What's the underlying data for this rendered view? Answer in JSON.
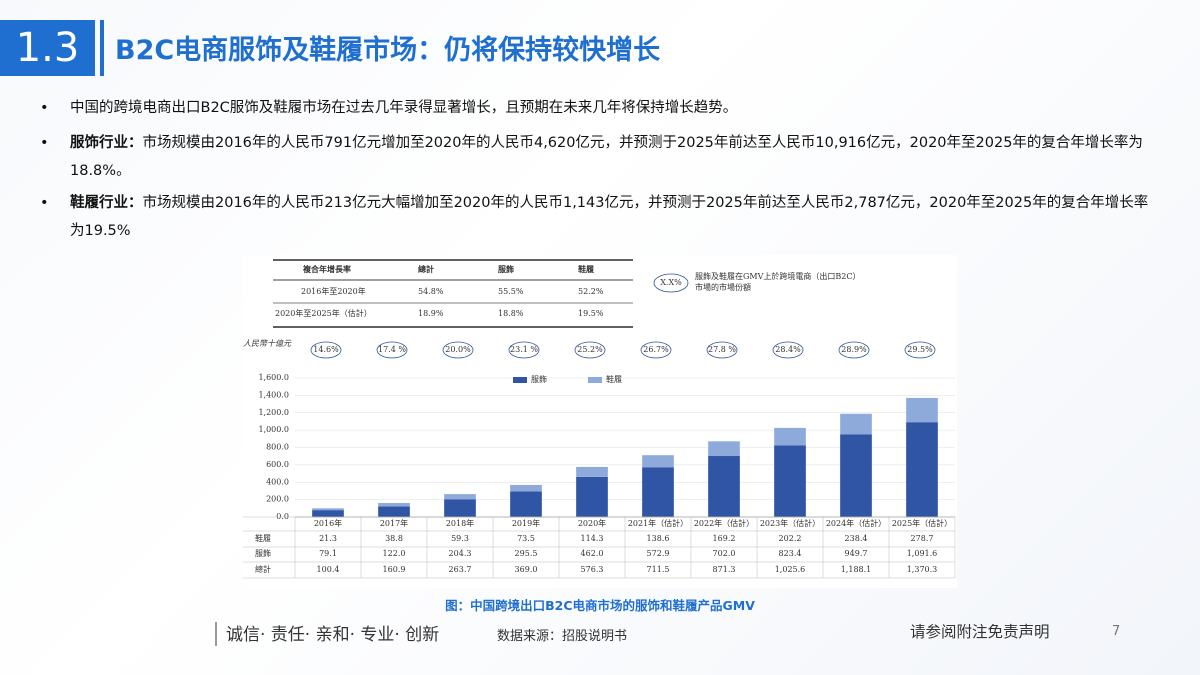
{
  "header": {
    "number": "1.3",
    "title": "B2C电商服饰及鞋履市场：仍将保持较快增长"
  },
  "bullets": [
    {
      "text": "中国的跨境电商出口B2C服饰及鞋履市场在过去几年录得显著增长，且预期在未来几年将保持增长趋势。"
    },
    {
      "label": "服饰行业：",
      "text": "市场规模由2016年的人民币791亿元增加至2020年的人民币4,620亿元，并预测于2025年前达至人民币10,916亿元，2020年至2025年的复合年增长率为18.8%。"
    },
    {
      "label": "鞋履行业：",
      "text": "市场规模由2016年的人民币213亿元大幅增加至2020年的人民币1,143亿元，并预测于2025年前达至人民币2,787亿元，2020年至2025年的复合年增长率为19.5%"
    }
  ],
  "growth_table": {
    "header": [
      "複合年增長率",
      "總計",
      "服飾",
      "鞋履"
    ],
    "rows": [
      [
        "2016年至2020年",
        "54.8%",
        "55.5%",
        "52.2%"
      ],
      [
        "2020年至2025年（估計）",
        "18.9%",
        "18.8%",
        "19.5%"
      ]
    ]
  },
  "share_note": {
    "symbol": "X.X%",
    "text": "服飾及鞋履在GMV上於跨境電商（出口B2C）市場的市場份額"
  },
  "chart_data": {
    "type": "stacked_bar",
    "y_label": "人民幣十億元",
    "categories": [
      "2016年",
      "2017年",
      "2018年",
      "2019年",
      "2020年",
      "2021年（估計）",
      "2022年（估計）",
      "2023年（估計）",
      "2024年（估計）",
      "2025年（估計）"
    ],
    "series": [
      {
        "name": "服飾",
        "color": "#2f55a4",
        "values": [
          79.1,
          122.0,
          204.3,
          295.5,
          462.0,
          572.9,
          702.0,
          823.4,
          949.7,
          1091.6
        ],
        "value_labels": [
          "79.1",
          "122.0",
          "204.3",
          "295.5",
          "462.0",
          "572.9",
          "702.0",
          "823.4",
          "949.7",
          "1,091.6"
        ]
      },
      {
        "name": "鞋履",
        "color": "#8eaadb",
        "values": [
          21.3,
          38.8,
          59.3,
          73.5,
          114.3,
          138.6,
          169.2,
          202.2,
          238.4,
          278.7
        ],
        "value_labels": [
          "21.3",
          "38.8",
          "59.3",
          "73.5",
          "114.3",
          "138.6",
          "169.2",
          "202.2",
          "238.4",
          "278.7"
        ]
      }
    ],
    "total_name": "總計",
    "totals": [
      100.4,
      160.9,
      263.7,
      369.0,
      576.3,
      711.5,
      871.3,
      1025.6,
      1188.1,
      1370.3
    ],
    "total_labels": [
      "100.4",
      "160.9",
      "263.7",
      "369.0",
      "576.3",
      "711.5",
      "871.3",
      "1,025.6",
      "1,188.1",
      "1,370.3"
    ],
    "shares": [
      14.6,
      17.4,
      20.0,
      23.1,
      25.2,
      26.7,
      27.8,
      28.4,
      28.9,
      29.5
    ],
    "share_labels": [
      "14.6%",
      "17.4 %",
      "20.0%",
      "23.1 %",
      "25.2%",
      "26.7%",
      "27.8 %",
      "28.4%",
      "28.9%",
      "29.5%"
    ],
    "ylim": [
      0,
      1600
    ],
    "yticks": [
      {
        "value": 0,
        "label": "0.0"
      },
      {
        "value": 200,
        "label": "200.0"
      },
      {
        "value": 400,
        "label": "400.0"
      },
      {
        "value": 600,
        "label": "600.0"
      },
      {
        "value": 800,
        "label": "800.0"
      },
      {
        "value": 1000,
        "label": "1,000.0"
      },
      {
        "value": 1200,
        "label": "1,200.0"
      },
      {
        "value": 1400,
        "label": "1,400.0"
      },
      {
        "value": 1600,
        "label": "1,600.0"
      }
    ],
    "grid": true
  },
  "caption": "图：中国跨境出口B2C电商市场的服饰和鞋履产品GMV",
  "footer": {
    "motto": "诚信· 责任· 亲和· 专业· 创新",
    "source": "数据来源：招股说明书",
    "disclaimer": "请参阅附注免责声明",
    "page": "7"
  }
}
